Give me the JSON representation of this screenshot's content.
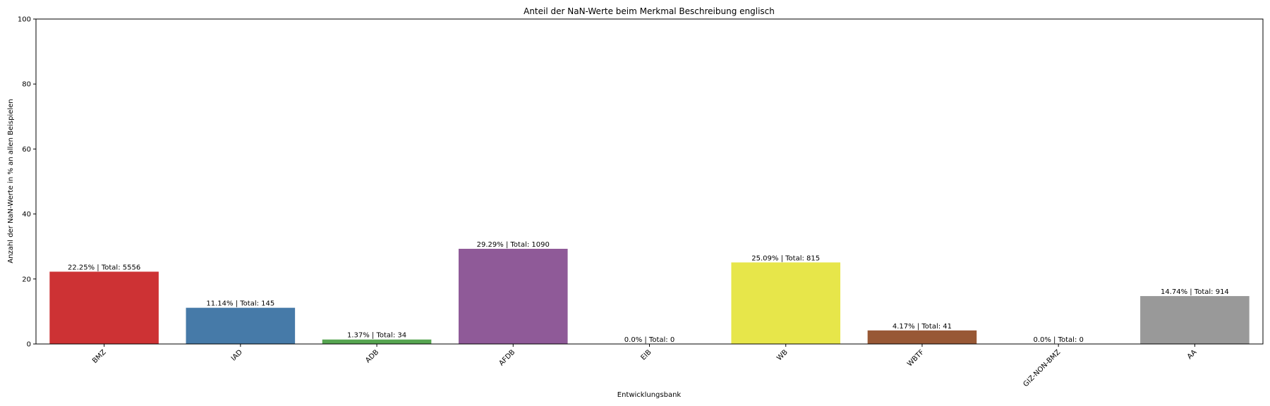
{
  "chart_data": {
    "type": "bar",
    "title": "Anteil der NaN-Werte beim Merkmal Beschreibung englisch",
    "xlabel": "Entwicklungsbank",
    "ylabel": "Anzahl der NaN-Werte in % an allen Beispielen",
    "ylim": [
      0,
      100
    ],
    "yticks": [
      0,
      20,
      40,
      60,
      80,
      100
    ],
    "grid": false,
    "categories": [
      "BMZ",
      "IAD",
      "ADB",
      "AFDB",
      "EIB",
      "WB",
      "WBTF",
      "GIZ-NON-BMZ",
      "AA"
    ],
    "values": [
      22.25,
      11.14,
      1.37,
      29.29,
      0.0,
      25.09,
      4.17,
      0.0,
      14.74
    ],
    "bar_labels": [
      "22.25% | Total: 5556",
      "11.14% | Total: 145",
      "1.37% | Total: 34",
      "29.29% | Total: 1090",
      "0.0% | Total: 0",
      "25.09% | Total: 815",
      "4.17% | Total: 41",
      "0.0% | Total: 0",
      "14.74% | Total: 914"
    ],
    "colors": [
      "#cd3234",
      "#467aa8",
      "#56a550",
      "#8f5a98",
      "#ff8000",
      "#e7e64a",
      "#985835",
      "#e585b8",
      "#999999"
    ]
  }
}
